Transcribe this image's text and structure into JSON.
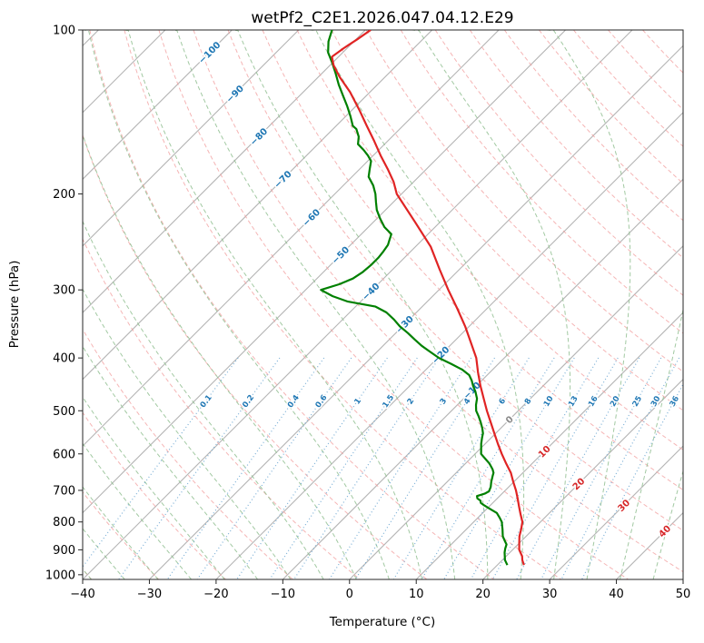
{
  "chart_data": {
    "type": "skewt-log-p",
    "title": "wetPf2_C2E1.2026.047.04.12.E29",
    "xlabel": "Temperature (°C)",
    "ylabel": "Pressure (hPa)",
    "xlim": [
      -40,
      50
    ],
    "plim": [
      100,
      1020
    ],
    "x_ticks": [
      -40,
      -30,
      -20,
      -10,
      0,
      10,
      20,
      30,
      40,
      50
    ],
    "y_ticks": [
      100,
      200,
      300,
      400,
      500,
      600,
      700,
      800,
      900,
      1000
    ],
    "skew_degrees": 45,
    "grid": true,
    "isotherms": {
      "start": -120,
      "end": 50,
      "step": 10,
      "color": "#b0b0b0"
    },
    "isotherm_labels": [
      {
        "t": -100,
        "p": 110,
        "color": "#1f77b4"
      },
      {
        "t": -90,
        "p": 131,
        "color": "#1f77b4"
      },
      {
        "t": -80,
        "p": 157,
        "color": "#1f77b4"
      },
      {
        "t": -70,
        "p": 188,
        "color": "#1f77b4"
      },
      {
        "t": -60,
        "p": 221,
        "color": "#1f77b4"
      },
      {
        "t": -50,
        "p": 259,
        "color": "#1f77b4"
      },
      {
        "t": -40,
        "p": 302,
        "color": "#1f77b4"
      },
      {
        "t": -30,
        "p": 347,
        "color": "#1f77b4"
      },
      {
        "t": -20,
        "p": 395,
        "color": "#1f77b4"
      },
      {
        "t": -10,
        "p": 459,
        "color": "#1f77b4"
      },
      {
        "t": 0,
        "p": 519,
        "color": "#8a8a8a"
      },
      {
        "t": 10,
        "p": 594,
        "color": "#d62728"
      },
      {
        "t": 20,
        "p": 681,
        "color": "#d62728"
      },
      {
        "t": 30,
        "p": 746,
        "color": "#d62728"
      },
      {
        "t": 40,
        "p": 832,
        "color": "#d62728"
      }
    ],
    "dry_adiabats": {
      "start": -40,
      "end": 180,
      "step": 10,
      "color": "#f2a2a2"
    },
    "moist_adiabats": {
      "start": -40,
      "end": 45,
      "step": 5,
      "color": "#92bf92"
    },
    "mixing_ratios": {
      "values": [
        0.1,
        0.2,
        0.4,
        0.6,
        1,
        1.5,
        2,
        3,
        4,
        6,
        8,
        10,
        13,
        16,
        20,
        25,
        30,
        36
      ],
      "top_pressure": 400,
      "label_pressure": 480,
      "line_color": "#6ca6d2",
      "label_color": "#1f77b4"
    },
    "temperature_profile": {
      "name": "temperature",
      "color": "#e02424",
      "points": [
        [
          960,
          24.0
        ],
        [
          940,
          23.0
        ],
        [
          925,
          22.4
        ],
        [
          900,
          21.0
        ],
        [
          875,
          20.0
        ],
        [
          850,
          19.0
        ],
        [
          825,
          18.2
        ],
        [
          800,
          17.3
        ],
        [
          775,
          15.9
        ],
        [
          750,
          14.5
        ],
        [
          725,
          13.1
        ],
        [
          700,
          11.6
        ],
        [
          675,
          9.9
        ],
        [
          650,
          8.2
        ],
        [
          625,
          6.1
        ],
        [
          600,
          4.0
        ],
        [
          575,
          1.9
        ],
        [
          550,
          -0.2
        ],
        [
          525,
          -2.4
        ],
        [
          500,
          -4.7
        ],
        [
          475,
          -7.0
        ],
        [
          450,
          -9.4
        ],
        [
          425,
          -11.8
        ],
        [
          400,
          -14.2
        ],
        [
          375,
          -17.3
        ],
        [
          350,
          -20.6
        ],
        [
          325,
          -24.4
        ],
        [
          300,
          -28.6
        ],
        [
          275,
          -33.0
        ],
        [
          250,
          -37.7
        ],
        [
          225,
          -43.8
        ],
        [
          200,
          -50.7
        ],
        [
          190,
          -53.0
        ],
        [
          180,
          -55.8
        ],
        [
          170,
          -58.9
        ],
        [
          160,
          -62.0
        ],
        [
          150,
          -65.4
        ],
        [
          140,
          -69.0
        ],
        [
          130,
          -73.0
        ],
        [
          122,
          -76.8
        ],
        [
          116,
          -79.5
        ],
        [
          112,
          -81.0
        ],
        [
          108,
          -80.5
        ],
        [
          104,
          -79.8
        ],
        [
          100,
          -79.2
        ]
      ]
    },
    "dewpoint_profile": {
      "name": "dewpoint",
      "color": "#008000",
      "points": [
        [
          960,
          21.5
        ],
        [
          940,
          20.4
        ],
        [
          925,
          19.8
        ],
        [
          910,
          19.2
        ],
        [
          895,
          18.7
        ],
        [
          880,
          18.3
        ],
        [
          865,
          17.4
        ],
        [
          850,
          16.5
        ],
        [
          825,
          15.4
        ],
        [
          800,
          14.2
        ],
        [
          785,
          13.2
        ],
        [
          770,
          12.1
        ],
        [
          755,
          10.2
        ],
        [
          745,
          9.0
        ],
        [
          738,
          8.2
        ],
        [
          731,
          7.8
        ],
        [
          724,
          7.0
        ],
        [
          717,
          6.6
        ],
        [
          710,
          7.4
        ],
        [
          703,
          7.7
        ],
        [
          690,
          7.3
        ],
        [
          675,
          6.6
        ],
        [
          660,
          6.0
        ],
        [
          650,
          5.6
        ],
        [
          640,
          4.9
        ],
        [
          625,
          3.6
        ],
        [
          612,
          2.2
        ],
        [
          600,
          0.9
        ],
        [
          588,
          0.2
        ],
        [
          575,
          -0.6
        ],
        [
          560,
          -1.4
        ],
        [
          550,
          -1.9
        ],
        [
          538,
          -2.8
        ],
        [
          525,
          -3.9
        ],
        [
          512,
          -5.1
        ],
        [
          500,
          -6.3
        ],
        [
          488,
          -7.2
        ],
        [
          475,
          -8.0
        ],
        [
          462,
          -9.2
        ],
        [
          450,
          -10.5
        ],
        [
          440,
          -11.5
        ],
        [
          430,
          -12.7
        ],
        [
          420,
          -14.6
        ],
        [
          410,
          -17.1
        ],
        [
          400,
          -19.8
        ],
        [
          390,
          -22.0
        ],
        [
          380,
          -24.2
        ],
        [
          370,
          -26.2
        ],
        [
          360,
          -28.2
        ],
        [
          350,
          -30.4
        ],
        [
          340,
          -32.3
        ],
        [
          330,
          -34.5
        ],
        [
          322,
          -37.0
        ],
        [
          315,
          -42.0
        ],
        [
          308,
          -45.0
        ],
        [
          300,
          -47.7
        ],
        [
          293,
          -45.8
        ],
        [
          286,
          -44.6
        ],
        [
          278,
          -44.1
        ],
        [
          270,
          -43.9
        ],
        [
          262,
          -43.9
        ],
        [
          255,
          -44.1
        ],
        [
          248,
          -44.4
        ],
        [
          243,
          -44.9
        ],
        [
          237,
          -45.5
        ],
        [
          230,
          -47.6
        ],
        [
          222,
          -49.5
        ],
        [
          214,
          -51.3
        ],
        [
          207,
          -52.6
        ],
        [
          200,
          -53.9
        ],
        [
          193,
          -55.5
        ],
        [
          186,
          -57.5
        ],
        [
          180,
          -58.5
        ],
        [
          174,
          -59.5
        ],
        [
          170,
          -60.8
        ],
        [
          166,
          -62.3
        ],
        [
          162,
          -64.0
        ],
        [
          157,
          -65.0
        ],
        [
          152,
          -66.5
        ],
        [
          150,
          -67.5
        ],
        [
          144,
          -69.3
        ],
        [
          138,
          -71.3
        ],
        [
          132,
          -73.5
        ],
        [
          126,
          -75.8
        ],
        [
          120,
          -78.0
        ],
        [
          115,
          -80.0
        ],
        [
          110,
          -82.2
        ],
        [
          105,
          -83.8
        ],
        [
          100,
          -85.0
        ]
      ]
    }
  }
}
